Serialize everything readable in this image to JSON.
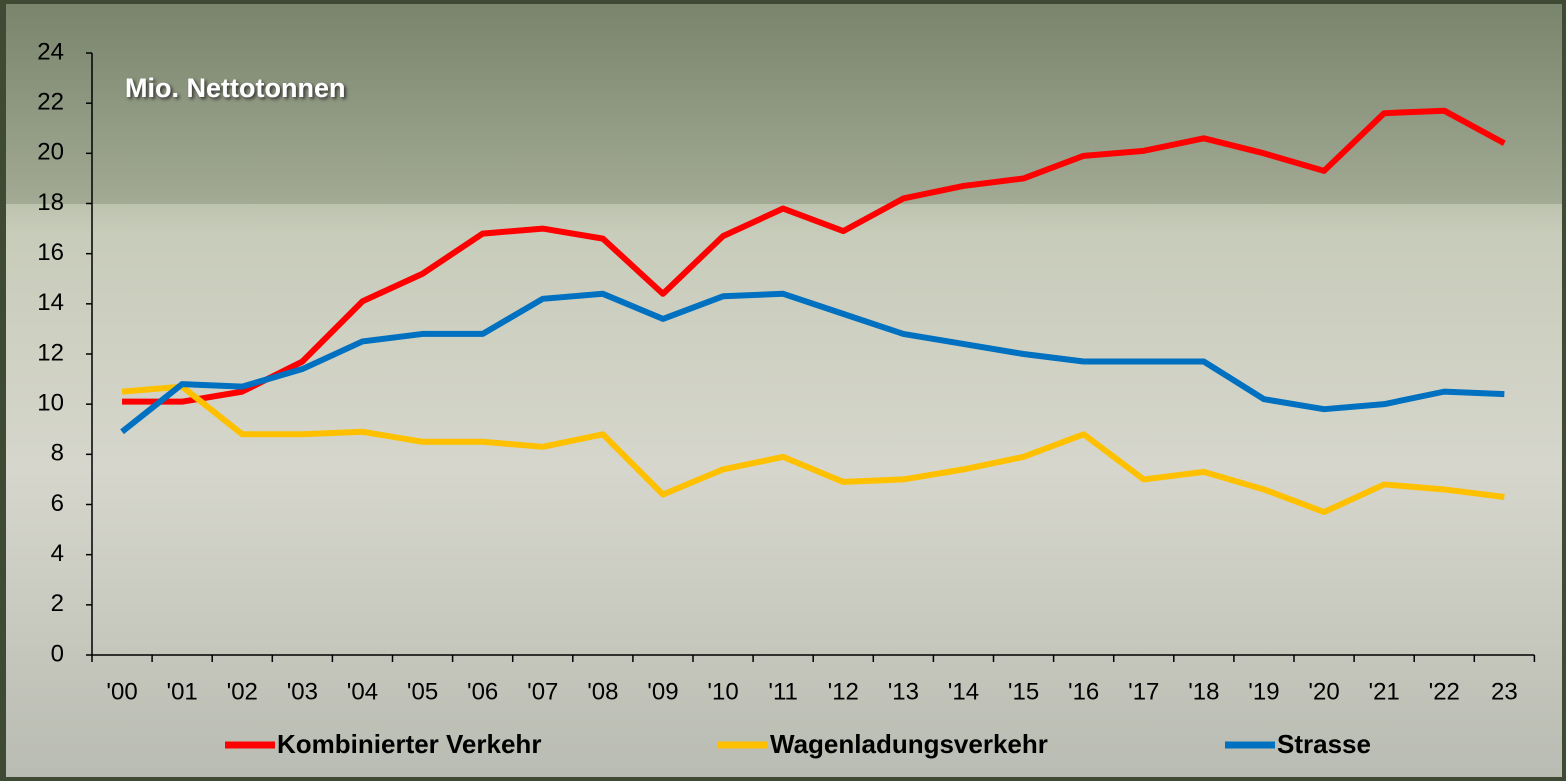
{
  "chart_data": {
    "type": "line",
    "annotation": "Mio. Nettotonnen",
    "categories": [
      "'00",
      "'01",
      "'02",
      "'03",
      "'04",
      "'05",
      "'06",
      "'07",
      "'08",
      "'09",
      "'10",
      "'11",
      "'12",
      "'13",
      "'14",
      "'15",
      "'16",
      "'17",
      "'18",
      "'19",
      "'20",
      "'21",
      "'22",
      "23"
    ],
    "series": [
      {
        "name": "Kombinierter Verkehr",
        "color": "#ff0000",
        "values": [
          10.1,
          10.1,
          10.5,
          11.7,
          14.1,
          15.2,
          16.8,
          17.0,
          16.6,
          14.4,
          16.7,
          17.8,
          16.9,
          18.2,
          18.7,
          19.0,
          19.9,
          20.1,
          20.6,
          20.0,
          19.3,
          21.6,
          21.7,
          20.4
        ]
      },
      {
        "name": "Wagenladungsverkehr",
        "color": "#ffc000",
        "values": [
          10.5,
          10.7,
          8.8,
          8.8,
          8.9,
          8.5,
          8.5,
          8.3,
          8.8,
          6.4,
          7.4,
          7.9,
          6.9,
          7.0,
          7.4,
          7.9,
          8.8,
          7.0,
          7.3,
          6.6,
          5.7,
          6.8,
          6.6,
          6.3
        ]
      },
      {
        "name": "Strasse",
        "color": "#0070c0",
        "values": [
          8.9,
          10.8,
          10.7,
          11.4,
          12.5,
          12.8,
          12.8,
          14.2,
          14.4,
          13.4,
          14.3,
          14.4,
          13.6,
          12.8,
          12.4,
          12.0,
          11.7,
          11.7,
          11.7,
          10.2,
          9.8,
          10.0,
          10.5,
          10.4
        ]
      }
    ],
    "ylim": [
      0,
      24
    ],
    "yticks": [
      0,
      2,
      4,
      6,
      8,
      10,
      12,
      14,
      16,
      18,
      20,
      22,
      24
    ],
    "legend": "bottom"
  }
}
